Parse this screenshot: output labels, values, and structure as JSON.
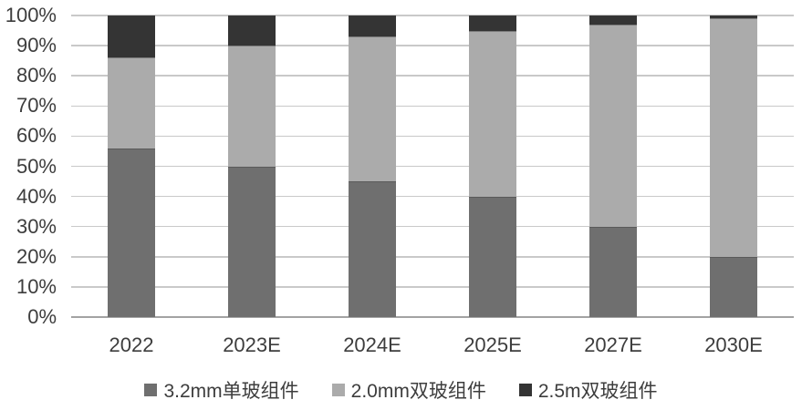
{
  "chart_data": {
    "type": "bar",
    "stacked": true,
    "title": "",
    "categories": [
      "2022",
      "2023E",
      "2024E",
      "2025E",
      "2027E",
      "2030E"
    ],
    "series": [
      {
        "name": "3.2mm单玻组件",
        "color": "#6f6f6f",
        "values": [
          56,
          50,
          45,
          40,
          30,
          20
        ]
      },
      {
        "name": "2.0mm双玻组件",
        "color": "#ababab",
        "values": [
          30,
          40,
          48,
          55,
          67,
          79
        ]
      },
      {
        "name": "2.5m双玻组件",
        "color": "#343434",
        "values": [
          14,
          10,
          7,
          5,
          3,
          1
        ]
      }
    ],
    "y_axis": {
      "min": 0,
      "max": 100,
      "step": 10,
      "unit": "%",
      "tick_labels": [
        "0%",
        "10%",
        "20%",
        "30%",
        "40%",
        "50%",
        "60%",
        "70%",
        "80%",
        "90%",
        "100%"
      ]
    },
    "x_axis": {
      "tick_labels": [
        "2022",
        "2023E",
        "2024E",
        "2025E",
        "2027E",
        "2030E"
      ]
    },
    "legend": {
      "position": "bottom",
      "items": [
        "3.2mm单玻组件",
        "2.0mm双玻组件",
        "2.5m双玻组件"
      ]
    },
    "grid": true,
    "style": {
      "grid_color": "#c9c9c9",
      "axis_color": "#a3a3a3",
      "text_color": "#3d3d3d",
      "background": "#ffffff"
    }
  }
}
